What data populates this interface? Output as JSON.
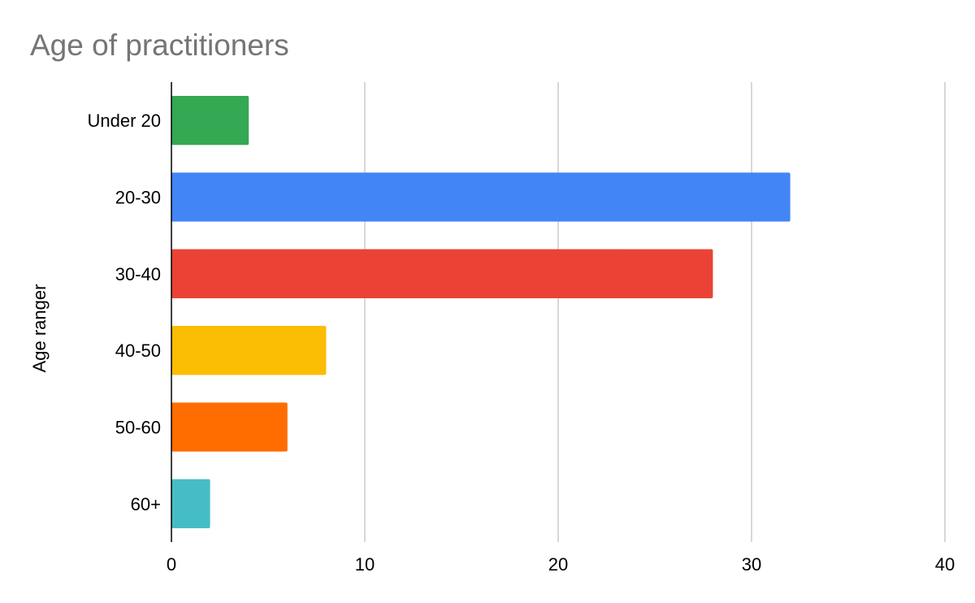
{
  "chart_data": {
    "type": "bar",
    "orientation": "horizontal",
    "title": "Age of practitioners",
    "xlabel": "",
    "ylabel": "Age ranger",
    "categories": [
      "Under 20",
      "20-30",
      "30-40",
      "40-50",
      "50-60",
      "60+"
    ],
    "values": [
      4,
      32,
      28,
      8,
      6,
      2
    ],
    "colors": [
      "#34a853",
      "#4285f4",
      "#ea4335",
      "#fbbc04",
      "#ff6d01",
      "#46bdc6"
    ],
    "xlim": [
      0,
      40
    ],
    "xticks": [
      0,
      10,
      20,
      30,
      40
    ],
    "grid": "vertical",
    "legend": "none"
  }
}
